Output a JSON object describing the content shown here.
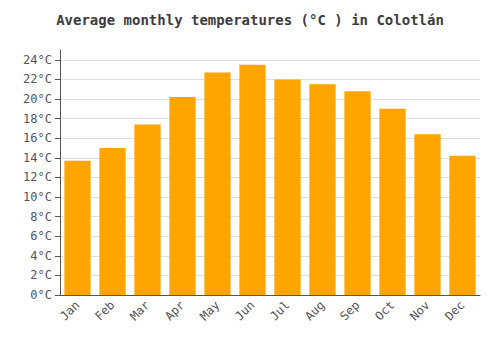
{
  "chart_data": {
    "type": "bar",
    "title": "Average monthly temperatures (°C ) in Colotlán",
    "categories": [
      "Jan",
      "Feb",
      "Mar",
      "Apr",
      "May",
      "Jun",
      "Jul",
      "Aug",
      "Sep",
      "Oct",
      "Nov",
      "Dec"
    ],
    "values": [
      13.7,
      15.0,
      17.4,
      20.2,
      22.7,
      23.5,
      22.0,
      21.5,
      20.8,
      19.0,
      16.4,
      14.2
    ],
    "color": "#FFA500",
    "ylim": [
      0,
      25
    ],
    "yticks": [
      {
        "value": 0,
        "label": "0°C"
      },
      {
        "value": 2,
        "label": "2°C"
      },
      {
        "value": 4,
        "label": "4°C"
      },
      {
        "value": 6,
        "label": "6°C"
      },
      {
        "value": 8,
        "label": "8°C"
      },
      {
        "value": 10,
        "label": "10°C"
      },
      {
        "value": 12,
        "label": "12°C"
      },
      {
        "value": 14,
        "label": "14°C"
      },
      {
        "value": 16,
        "label": "16°C"
      },
      {
        "value": 18,
        "label": "18°C"
      },
      {
        "value": 20,
        "label": "20°C"
      },
      {
        "value": 22,
        "label": "22°C"
      },
      {
        "value": 24,
        "label": "24°C"
      }
    ],
    "grid": true
  }
}
